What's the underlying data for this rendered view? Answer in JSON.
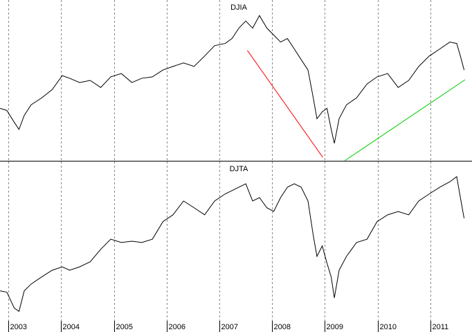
{
  "chart_data": [
    {
      "type": "line",
      "title": "DJIA",
      "x": [
        2002.84,
        2002.97,
        2003.11,
        2003.2,
        2003.3,
        2003.43,
        2003.63,
        2003.83,
        2004.02,
        2004.16,
        2004.35,
        2004.55,
        2004.75,
        2004.94,
        2005.14,
        2005.34,
        2005.53,
        2005.73,
        2005.93,
        2006.12,
        2006.32,
        2006.52,
        2006.72,
        2006.91,
        2007.11,
        2007.24,
        2007.37,
        2007.5,
        2007.63,
        2007.76,
        2007.9,
        2008.03,
        2008.16,
        2008.29,
        2008.42,
        2008.55,
        2008.68,
        2008.78,
        2008.85,
        2008.95,
        2009.04,
        2009.12,
        2009.18,
        2009.27,
        2009.41,
        2009.6,
        2009.8,
        2009.99,
        2010.19,
        2010.39,
        2010.59,
        2010.78,
        2010.98,
        2011.18,
        2011.37,
        2011.5,
        2011.57,
        2011.64
      ],
      "series": [
        {
          "name": "DJIA",
          "color": "#000000",
          "values": [
            8670,
            8550,
            7880,
            7480,
            8270,
            8870,
            9260,
            9730,
            10520,
            10370,
            10130,
            10250,
            9850,
            10450,
            10640,
            10130,
            10370,
            10450,
            10840,
            11040,
            11240,
            11040,
            11630,
            12220,
            12340,
            12620,
            13210,
            13610,
            13210,
            13920,
            13210,
            12820,
            12420,
            12620,
            12030,
            11430,
            10840,
            9260,
            8080,
            8470,
            8670,
            7480,
            6690,
            8080,
            8870,
            9260,
            10050,
            10450,
            10640,
            9850,
            10250,
            11040,
            11630,
            12030,
            12420,
            12340,
            11630,
            10840
          ]
        }
      ],
      "trendlines": [
        {
          "color": "#ff0000",
          "x": [
            2007.53,
            2008.96
          ],
          "y": [
            11950,
            5900
          ]
        },
        {
          "color": "#00cc00",
          "x": [
            2009.38,
            2011.66
          ],
          "y": [
            5710,
            10290
          ]
        }
      ],
      "xlim": [
        2002.84,
        2011.79
      ],
      "ylim": [
        5700,
        14800
      ],
      "xticks": [
        2003,
        2004,
        2005,
        2006,
        2007,
        2008,
        2009,
        2010,
        2011
      ],
      "grid": true
    },
    {
      "type": "line",
      "title": "DJTA",
      "x": [
        2002.84,
        2002.97,
        2003.11,
        2003.2,
        2003.3,
        2003.43,
        2003.63,
        2003.83,
        2004.02,
        2004.16,
        2004.35,
        2004.55,
        2004.75,
        2004.94,
        2005.14,
        2005.34,
        2005.53,
        2005.73,
        2005.93,
        2006.12,
        2006.32,
        2006.52,
        2006.72,
        2006.91,
        2007.11,
        2007.24,
        2007.37,
        2007.5,
        2007.63,
        2007.76,
        2007.9,
        2008.03,
        2008.16,
        2008.29,
        2008.42,
        2008.55,
        2008.68,
        2008.78,
        2008.85,
        2008.95,
        2009.04,
        2009.12,
        2009.18,
        2009.27,
        2009.41,
        2009.6,
        2009.8,
        2009.99,
        2010.19,
        2010.39,
        2010.59,
        2010.78,
        2010.98,
        2011.18,
        2011.37,
        2011.5,
        2011.57,
        2011.64
      ],
      "series": [
        {
          "name": "DJTA",
          "color": "#000000",
          "values": [
            2370,
            2330,
            1860,
            1760,
            2370,
            2570,
            2780,
            2980,
            3080,
            2980,
            3080,
            3230,
            3600,
            3900,
            3800,
            3840,
            3800,
            3900,
            4420,
            4620,
            5030,
            4830,
            4620,
            5030,
            5240,
            5340,
            5440,
            5540,
            5030,
            5130,
            4830,
            4720,
            5130,
            5440,
            5540,
            5440,
            5030,
            4010,
            3390,
            3700,
            3190,
            2780,
            2160,
            2980,
            3390,
            3800,
            3900,
            4420,
            4620,
            4720,
            4620,
            5030,
            5240,
            5440,
            5600,
            5750,
            5130,
            4520
          ]
        }
      ],
      "xlim": [
        2002.84,
        2011.79
      ],
      "ylim": [
        1150,
        6200
      ],
      "xticks": [
        2003,
        2004,
        2005,
        2006,
        2007,
        2008,
        2009,
        2010,
        2011
      ],
      "grid": true
    }
  ]
}
